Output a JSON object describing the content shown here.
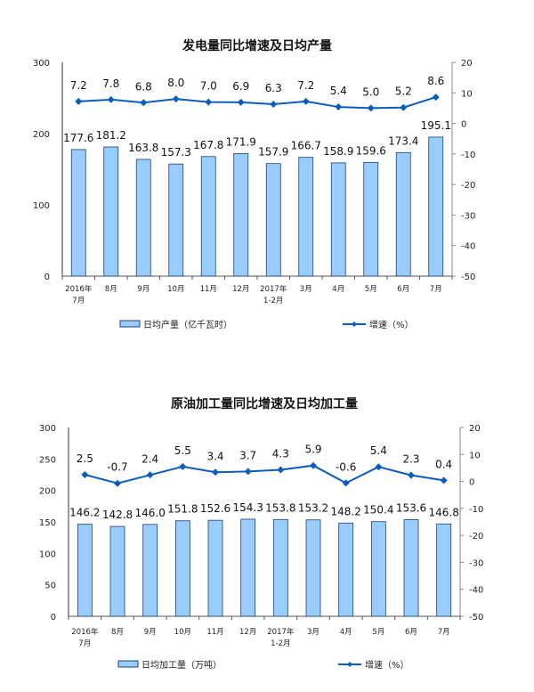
{
  "chart_data": [
    {
      "type": "bar+line",
      "title": "发电量同比增速及日均产量",
      "categories": [
        "2016年\n7月",
        "8月",
        "9月",
        "10月",
        "11月",
        "12月",
        "2017年\n1-2月",
        "3月",
        "4月",
        "5月",
        "6月",
        "7月"
      ],
      "series": [
        {
          "name": "日均产量（亿千瓦时）",
          "type": "bar",
          "axis": "left",
          "values": [
            177.6,
            181.2,
            163.8,
            157.3,
            167.8,
            171.9,
            157.9,
            166.7,
            158.9,
            159.6,
            173.4,
            195.1
          ]
        },
        {
          "name": "增速（%）",
          "type": "line",
          "axis": "right",
          "values": [
            7.2,
            7.8,
            6.8,
            8.0,
            7.0,
            6.9,
            6.3,
            7.2,
            5.4,
            5.0,
            5.2,
            8.6
          ]
        }
      ],
      "ylim_left": [
        0,
        300
      ],
      "yticks_left": [
        0,
        100,
        200,
        300
      ],
      "ylim_right": [
        -50,
        20
      ],
      "yticks_right": [
        -50,
        -40,
        -30,
        -20,
        -10,
        0,
        10,
        20
      ],
      "legend": "bottom",
      "colors": {
        "bar": "#99ccff",
        "bar_edge": "#1f3f6f",
        "line": "#0b5cbf"
      }
    },
    {
      "type": "bar+line",
      "title": "原油加工量同比增速及日均加工量",
      "categories": [
        "2016年\n7月",
        "8月",
        "9月",
        "10月",
        "11月",
        "12月",
        "2017年\n1-2月",
        "3月",
        "4月",
        "5月",
        "6月",
        "7月"
      ],
      "series": [
        {
          "name": "日均加工量（万吨）",
          "type": "bar",
          "axis": "left",
          "values": [
            146.2,
            142.8,
            146.0,
            151.8,
            152.6,
            154.3,
            153.8,
            153.2,
            148.2,
            150.4,
            153.6,
            146.8
          ]
        },
        {
          "name": "增速（%）",
          "type": "line",
          "axis": "right",
          "values": [
            2.5,
            -0.7,
            2.4,
            5.5,
            3.4,
            3.7,
            4.3,
            5.9,
            -0.6,
            5.4,
            2.3,
            0.4
          ]
        }
      ],
      "ylim_left": [
        0,
        300
      ],
      "yticks_left": [
        0,
        50,
        100,
        150,
        200,
        250,
        300
      ],
      "ylim_right": [
        -50,
        20
      ],
      "yticks_right": [
        -50,
        -40,
        -30,
        -20,
        -10,
        0,
        10,
        20
      ],
      "legend": "bottom",
      "colors": {
        "bar": "#99ccff",
        "bar_edge": "#1f3f6f",
        "line": "#0b5cbf"
      }
    }
  ]
}
